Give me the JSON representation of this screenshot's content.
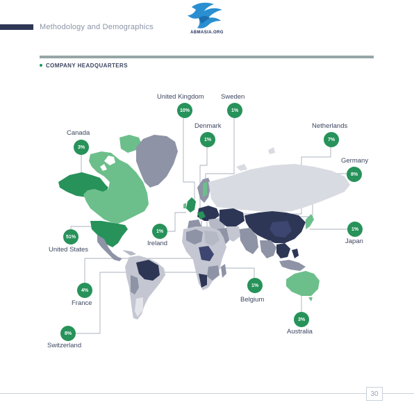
{
  "header": {
    "section_title": "Methodology and Demographics",
    "logo_text": "ABMASIA.ORG",
    "subheading": "COMPANY HEADQUARTERS"
  },
  "colors": {
    "accent_green": "#27925a",
    "light_green": "#6cbf8b",
    "dark_navy": "#2e3656",
    "grey_land": "#c4c7d2",
    "rule": "#97a6a6"
  },
  "countries": [
    {
      "name": "United Kingdom",
      "value": "10%"
    },
    {
      "name": "Sweden",
      "value": "1%"
    },
    {
      "name": "Denmark",
      "value": "1%"
    },
    {
      "name": "Netherlands",
      "value": "7%"
    },
    {
      "name": "Germany",
      "value": "8%"
    },
    {
      "name": "Canada",
      "value": "3%"
    },
    {
      "name": "United States",
      "value": "51%"
    },
    {
      "name": "Ireland",
      "value": "1%"
    },
    {
      "name": "Japan",
      "value": "1%"
    },
    {
      "name": "France",
      "value": "4%"
    },
    {
      "name": "Belgium",
      "value": "1%"
    },
    {
      "name": "Australia",
      "value": "3%"
    },
    {
      "name": "Switzerland",
      "value": "8%"
    }
  ],
  "footer": {
    "page_number": "30"
  }
}
